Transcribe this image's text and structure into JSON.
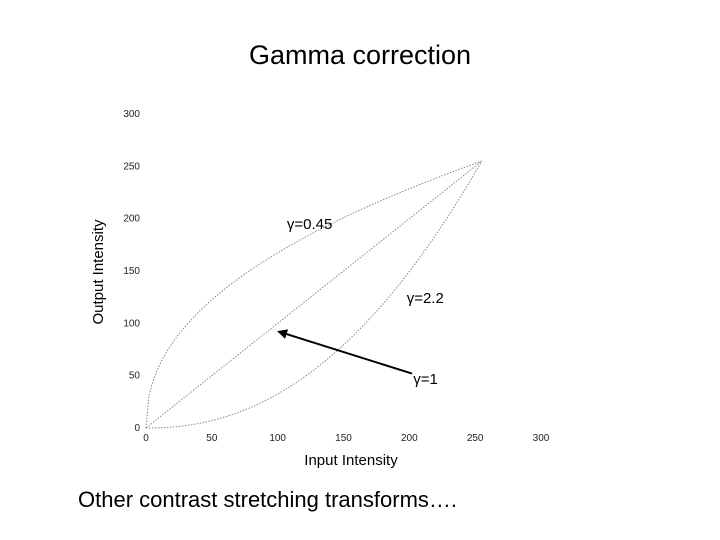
{
  "slide": {
    "title": "Gamma correction",
    "caption": "Other contrast stretching transforms…."
  },
  "chart_data": {
    "type": "line",
    "xlabel": "Input Intensity",
    "ylabel": "Output Intensity",
    "xlim": [
      0,
      300
    ],
    "ylim": [
      0,
      300
    ],
    "x_ticks": [
      "0",
      "50",
      "100",
      "150",
      "200",
      "250",
      "300"
    ],
    "y_ticks": [
      "0",
      "50",
      "100",
      "150",
      "200",
      "250",
      "300"
    ],
    "x_max": 255,
    "series": [
      {
        "name": "γ=0.45",
        "gamma": 0.45,
        "label_at": [
          107,
          195
        ]
      },
      {
        "name": "γ=2.2",
        "gamma": 2.2,
        "label_at": [
          198,
          124
        ]
      },
      {
        "name": "γ=1",
        "gamma": 1,
        "label_at": [
          203,
          47
        ]
      }
    ],
    "arrow": {
      "from": [
        202,
        52
      ],
      "to": [
        101,
        92
      ]
    },
    "line_color": "#888888",
    "arrow_color": "#000000"
  }
}
